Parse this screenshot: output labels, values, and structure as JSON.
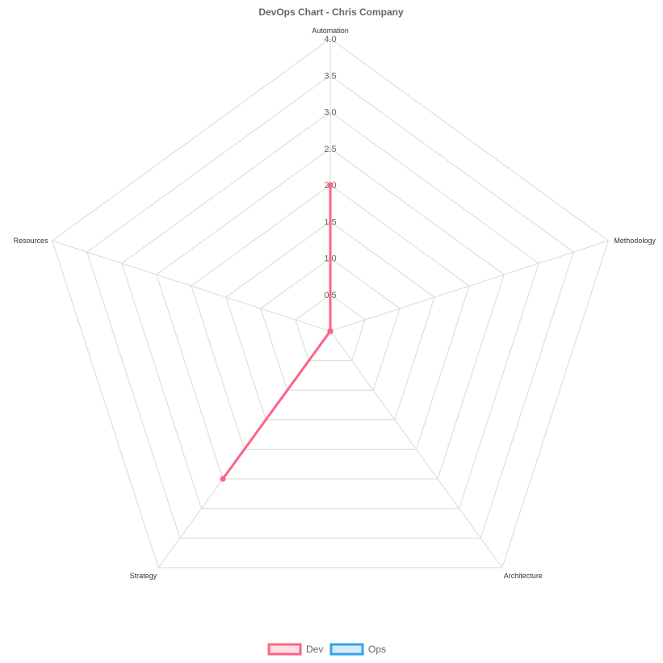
{
  "chart_data": {
    "type": "radar",
    "title": "DevOps Chart - Chris Company",
    "axes": [
      "Automation",
      "Methodology",
      "Architecture",
      "Strategy",
      "Resources"
    ],
    "ticks": [
      "0.5",
      "1.0",
      "1.5",
      "2.0",
      "2.5",
      "3.0",
      "3.5",
      "4.0"
    ],
    "rlim": [
      0,
      4
    ],
    "grid": true,
    "legend_position": "bottom",
    "series": [
      {
        "name": "Dev",
        "values": [
          2,
          0,
          0,
          2.5,
          0
        ],
        "color": "#ff6384",
        "fill": "#ffe0e6"
      },
      {
        "name": "Ops",
        "values": [
          0,
          0,
          0,
          0,
          0
        ],
        "color": "#36a2eb",
        "fill": "#d7ecfb"
      }
    ]
  }
}
